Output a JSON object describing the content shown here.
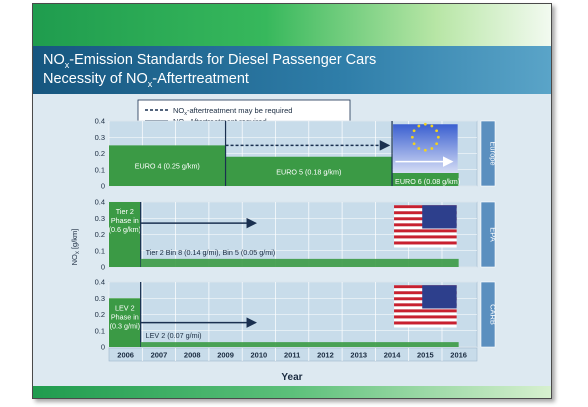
{
  "title": {
    "line1_prefix": "NO",
    "line1_sub": "x",
    "line1_rest": "-Emission Standards for Diesel Passenger Cars",
    "line2_prefix": "Necessity of NO",
    "line2_sub": "x",
    "line2_rest": "-Aftertreatment"
  },
  "legend": {
    "item1_prefix": "NO",
    "item1_sub": "x",
    "item1_rest": "-aftertreatment may be required",
    "item2_prefix": "NO",
    "item2_sub": "x",
    "item2_rest": "-Aftertreatment required"
  },
  "chart_data": {
    "type": "bar",
    "xlabel": "Year",
    "ylabel_prefix": "NO",
    "ylabel_sub": "x",
    "ylabel_rest": " [g/km]",
    "ylim": [
      0,
      0.4
    ],
    "yticks": [
      "0",
      "0.1",
      "0.2",
      "0.3",
      "0.4"
    ],
    "years": [
      "2006",
      "2007",
      "2008",
      "2009",
      "2010",
      "2011",
      "2012",
      "2013",
      "2014",
      "2015",
      "2016"
    ],
    "panels": [
      {
        "region": "Europe",
        "colors": {
          "bar": "#3b9a45",
          "region_box": "#5b8fbf"
        },
        "segments": [
          {
            "label": "EURO 4 (0.25 g/km)",
            "start": 2006,
            "end": 2009.5,
            "value": 0.25
          },
          {
            "label": "EURO 5 (0.18 g/km)",
            "start": 2009.5,
            "end": 2014.5,
            "value": 0.18
          },
          {
            "label": "EURO 6 (0.08 g/km)",
            "start": 2014.5,
            "end": 2016.5,
            "value": 0.08
          }
        ],
        "arrows": [
          {
            "style": "dashed",
            "start": 2009.5,
            "end": 2014.4,
            "value": 0.25
          },
          {
            "style": "solid",
            "start": 2014.6,
            "end": 2016.3,
            "value": 0.15
          }
        ]
      },
      {
        "region": "EPA",
        "colors": {
          "bar": "#3b9a45",
          "region_box": "#5b8fbf"
        },
        "phase_in": {
          "label": "Tier 2 Phase in",
          "value_label": "(0.6 g/km)",
          "start": 2006,
          "end": 2006.95,
          "value": 0.4
        },
        "segments": [
          {
            "label": "Tier 2   Bin 8 (0.14 g/mi), Bin 5 (0.05 g/mi)",
            "start": 2006.95,
            "end": 2016.5,
            "value": 0.05
          }
        ],
        "arrows": [
          {
            "style": "solid",
            "start": 2006.95,
            "end": 2010.4,
            "value": 0.27
          }
        ]
      },
      {
        "region": "CARB",
        "colors": {
          "bar": "#3b9a45",
          "region_box": "#5b8fbf"
        },
        "phase_in": {
          "label": "LEV 2 Phase in",
          "value_label": "(0.3 g/mi)",
          "start": 2006,
          "end": 2006.95,
          "value": 0.3
        },
        "segments": [
          {
            "label": "LEV 2 (0.07 g/mi)",
            "start": 2006.95,
            "end": 2016.5,
            "value": 0.03
          }
        ],
        "arrows": [
          {
            "style": "solid",
            "start": 2006.95,
            "end": 2010.4,
            "value": 0.15
          }
        ]
      }
    ]
  }
}
